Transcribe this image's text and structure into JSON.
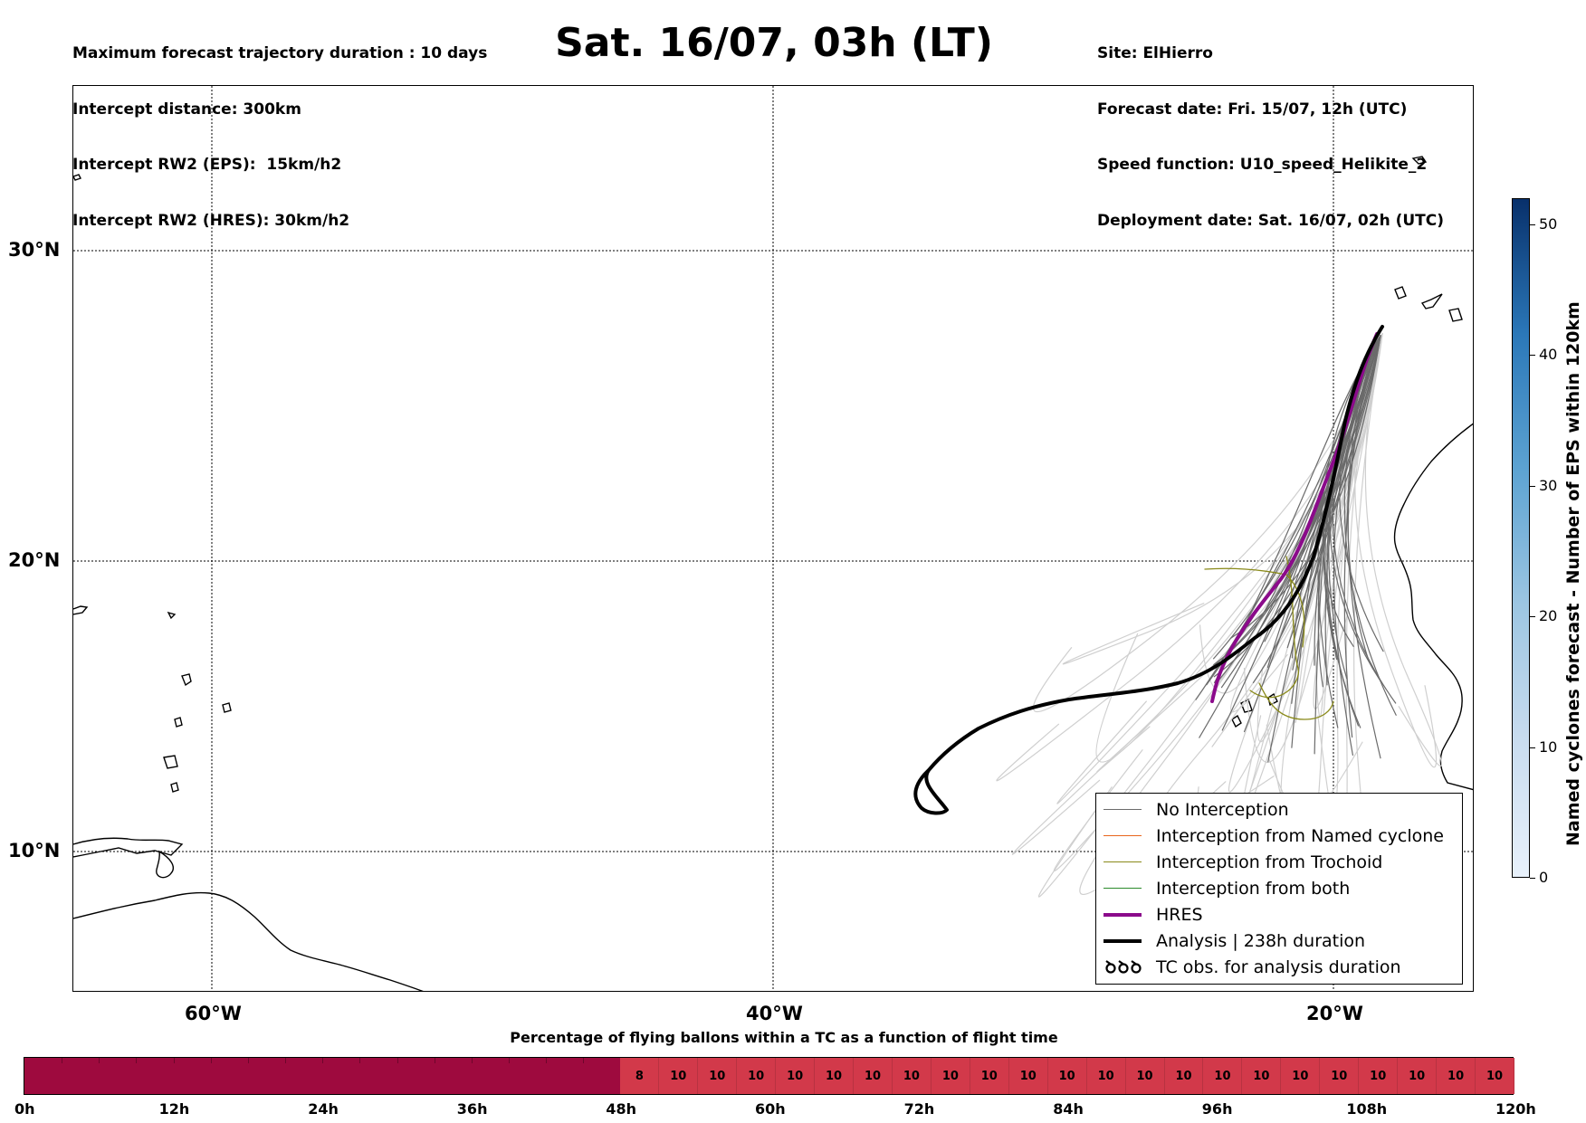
{
  "header": {
    "left_lines": [
      "Maximum forecast trajectory duration : 10 days",
      "Intercept distance: 300km",
      "Intercept RW2 (EPS):  15km/h2",
      "Intercept RW2 (HRES): 30km/h2"
    ],
    "title": "Sat. 16/07, 03h (LT)",
    "right_lines": [
      "Site: ElHierro",
      "Forecast date: Fri. 15/07, 12h (UTC)",
      "Speed function: U10_speed_Helikite_2",
      "Deployment date: Sat. 16/07, 02h (UTC)"
    ]
  },
  "map": {
    "lat_labels": [
      "30°N",
      "20°N",
      "10°N"
    ],
    "lon_labels": [
      "60°W",
      "40°W",
      "20°W"
    ],
    "colors": {
      "eps": "#6b6b6b",
      "eps_light": "#cfcfcf",
      "trochoid": "#8a8a1a",
      "named": "#e8651c",
      "both": "#2a8a2a",
      "hres": "#8b0a8b",
      "analysis": "#000000"
    }
  },
  "legend": {
    "items": [
      {
        "label": "No Interception",
        "color": "#6b6b6b"
      },
      {
        "label": "Interception from Named cyclone",
        "color": "#e8651c"
      },
      {
        "label": "Interception from Trochoid",
        "color": "#8a8a1a"
      },
      {
        "label": "Interception from both",
        "color": "#2a8a2a"
      },
      {
        "label": "HRES",
        "color": "#8b0a8b"
      },
      {
        "label": "Analysis | 238h duration",
        "color": "#000000"
      },
      {
        "label": "TC obs. for analysis duration",
        "color": "#000000"
      }
    ]
  },
  "colorbar": {
    "title": "Named cyclones forecast - Number of EPS within 120km",
    "ticks": [
      "0",
      "10",
      "20",
      "30",
      "40",
      "50"
    ],
    "max": 52
  },
  "timeline": {
    "title": "Percentage of flying ballons within a TC as a function of flight time",
    "ticks": [
      "0h",
      "12h",
      "24h",
      "36h",
      "48h",
      "60h",
      "72h",
      "84h",
      "96h",
      "108h",
      "120h"
    ],
    "segment_values": [
      "8",
      "10",
      "10",
      "10",
      "10",
      "10",
      "10",
      "10",
      "10",
      "10",
      "10",
      "10",
      "10",
      "10",
      "10",
      "10",
      "10",
      "10",
      "10",
      "10",
      "10",
      "10",
      "10"
    ],
    "colors": {
      "empty": "#9e0a3e",
      "filled": "#d2394a"
    }
  }
}
